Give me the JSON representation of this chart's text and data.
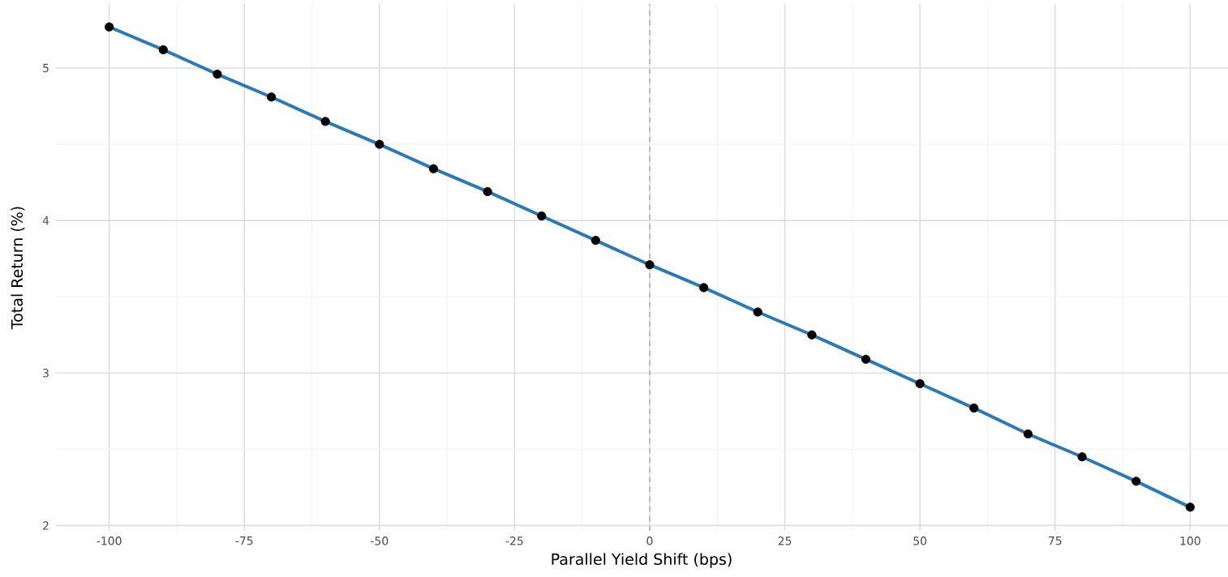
{
  "chart_data": {
    "type": "line",
    "xlabel": "Parallel Yield Shift (bps)",
    "ylabel": "Total Return (%)",
    "x": [
      -100,
      -90,
      -80,
      -70,
      -60,
      -50,
      -40,
      -30,
      -20,
      -10,
      0,
      10,
      20,
      30,
      40,
      50,
      60,
      70,
      80,
      90,
      100
    ],
    "series": [
      {
        "color": "#2a7ab8",
        "values": [
          5.27,
          5.12,
          4.96,
          4.81,
          4.65,
          4.5,
          4.34,
          4.19,
          4.03,
          3.87,
          3.71,
          3.56,
          3.4,
          3.25,
          3.09,
          2.93,
          2.77,
          2.6,
          2.45,
          2.29,
          2.12
        ]
      }
    ],
    "xlim": [
      -110,
      107
    ],
    "ylim": [
      1.965,
      5.42
    ],
    "xticks": [
      -100,
      -75,
      -50,
      -25,
      0,
      25,
      50,
      75,
      100
    ],
    "yticks": [
      2,
      3,
      4,
      5
    ],
    "ref_lines": [
      {
        "axis": "x",
        "value": 0,
        "color": "#a0a0a0",
        "line_style": "dashed"
      }
    ],
    "grid": true,
    "marker": "circle",
    "line_style": "solid"
  }
}
